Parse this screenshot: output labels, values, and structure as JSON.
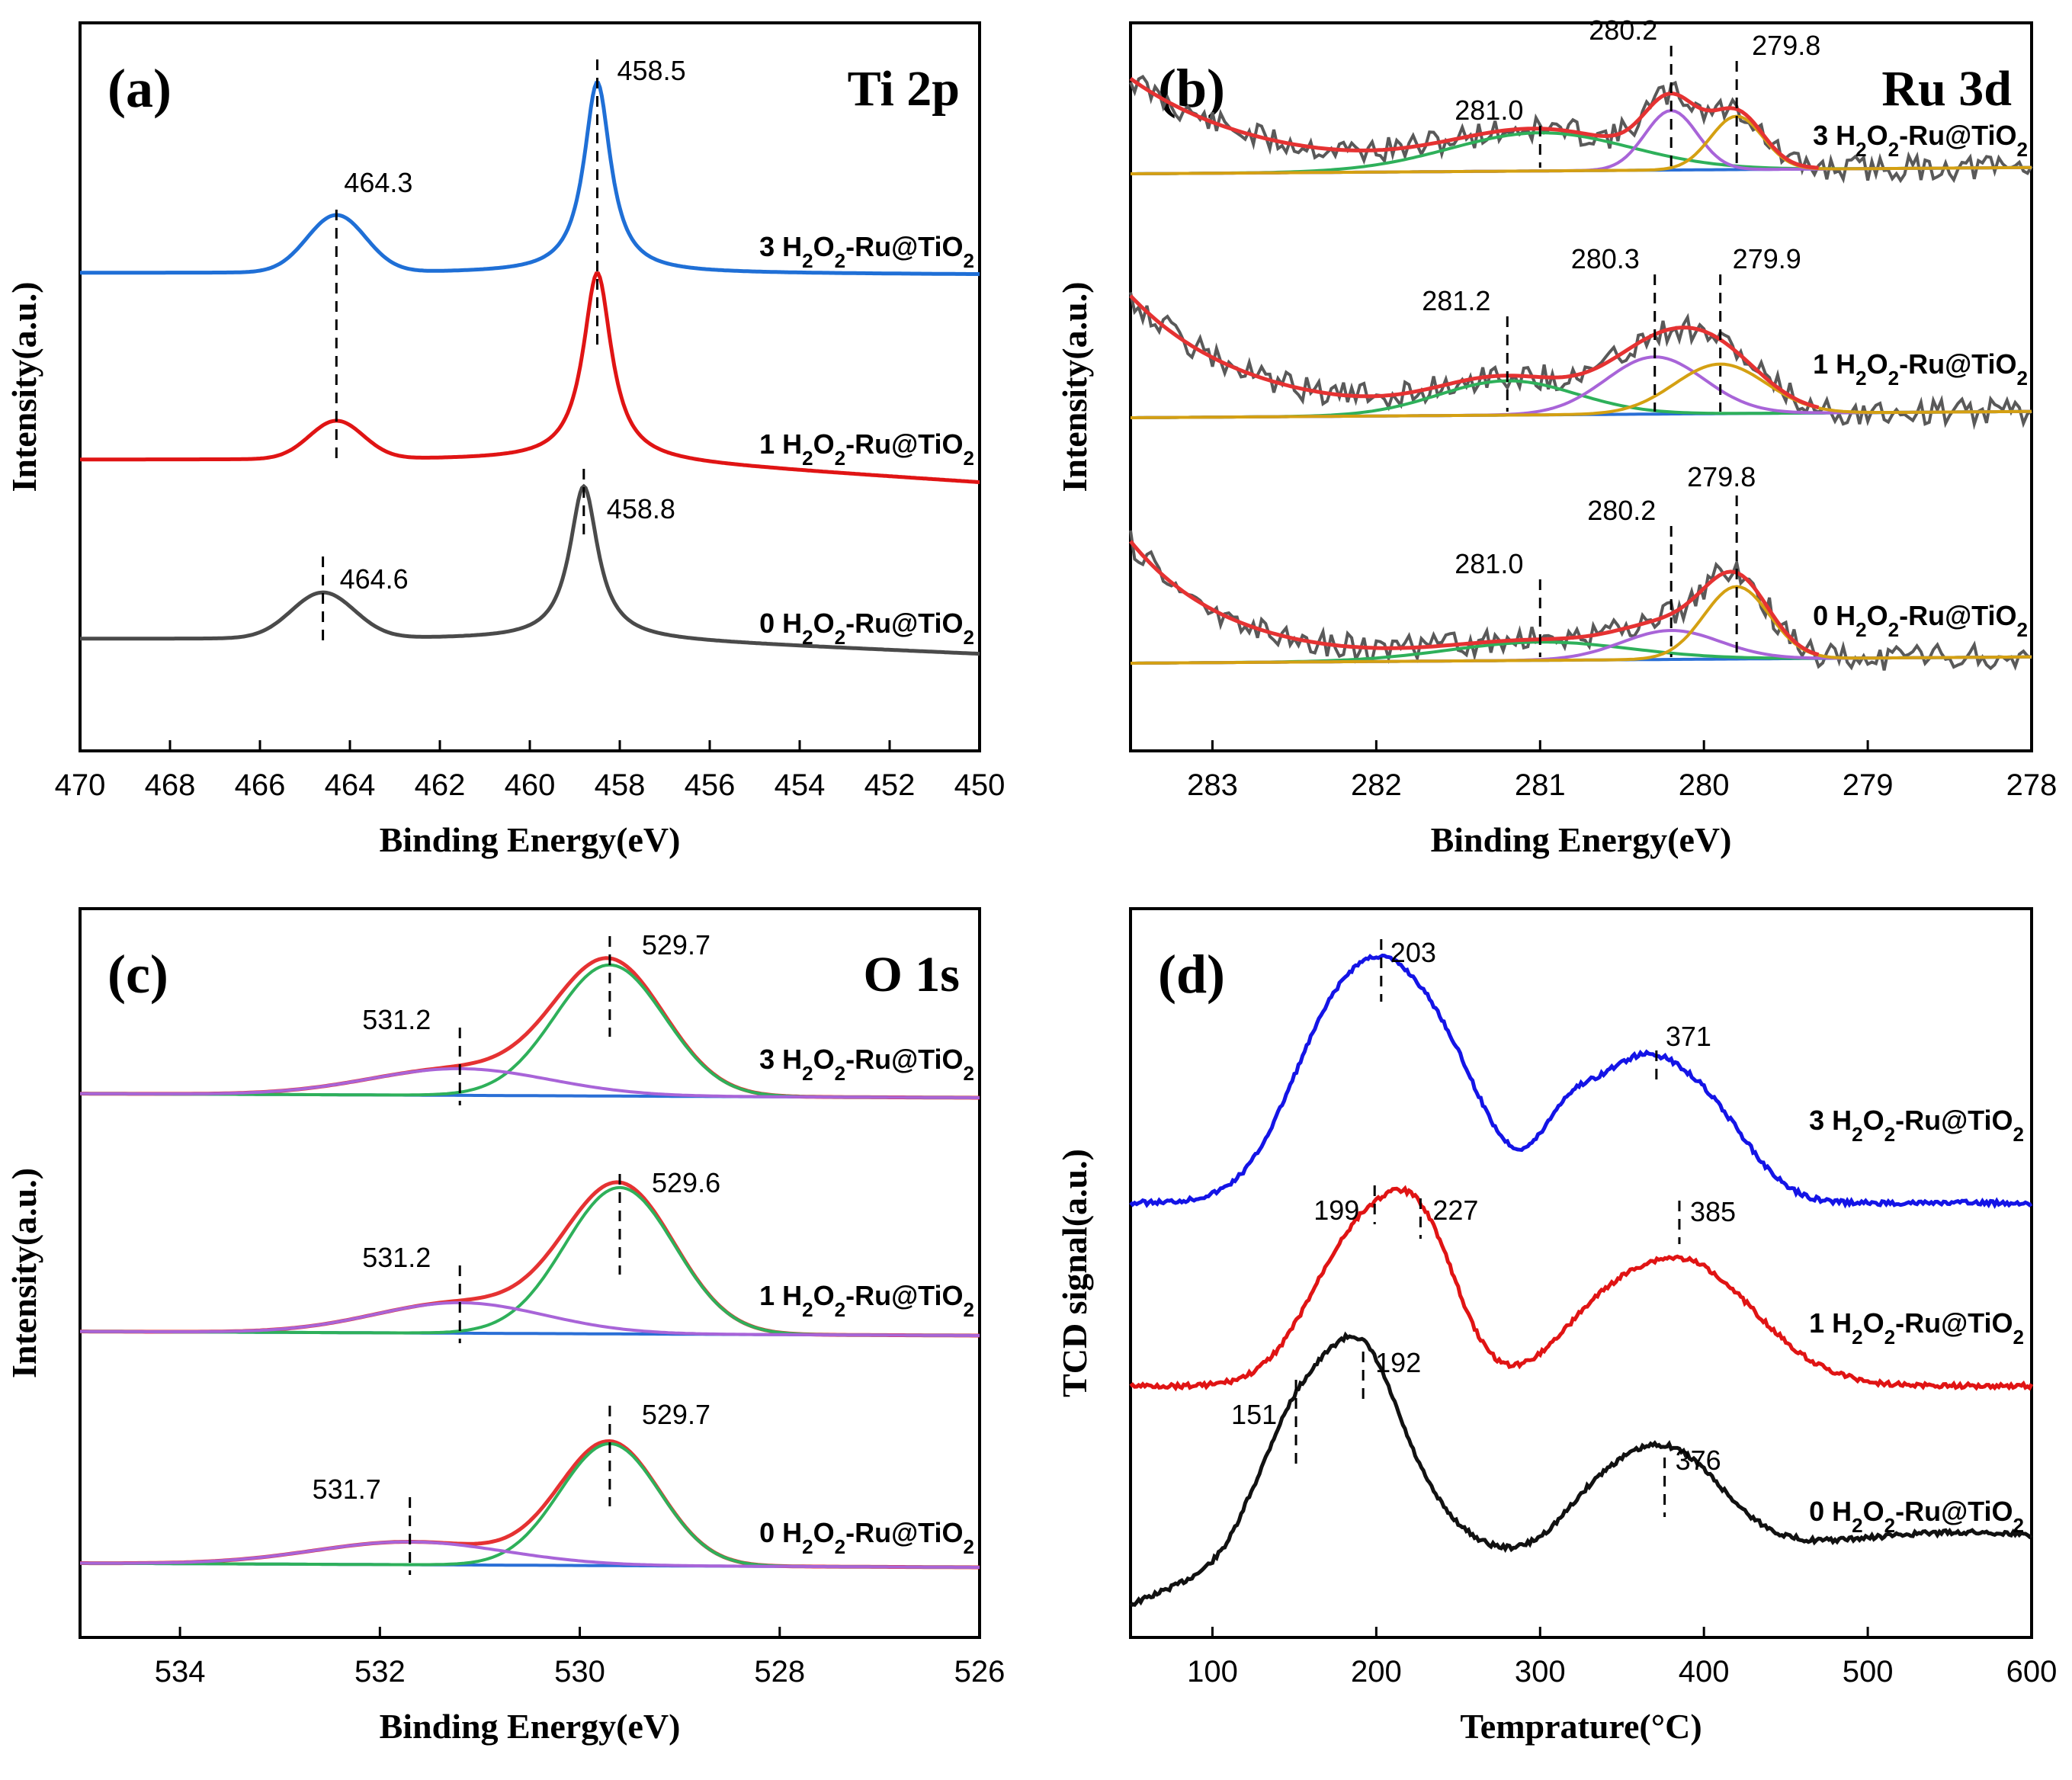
{
  "chart_data": [
    {
      "id": "a",
      "type": "line",
      "panel_label": "(a)",
      "element_label": "Ti 2p",
      "xlabel": "Binding Energy(eV)",
      "ylabel": "Intensity(a.u.)",
      "xlim": [
        470,
        450
      ],
      "x_ticks": [
        "470",
        "468",
        "466",
        "464",
        "462",
        "460",
        "458",
        "456",
        "454",
        "452",
        "450"
      ],
      "series": [
        {
          "name": "3 H2O2-Ru@TiO2",
          "color": "#1f6fd6",
          "peaks": [
            {
              "x": 464.3,
              "label": "464.3"
            },
            {
              "x": 458.5,
              "label": "458.5"
            }
          ]
        },
        {
          "name": "1 H2O2-Ru@TiO2",
          "color": "#e01414",
          "peaks": []
        },
        {
          "name": "0 H2O2-Ru@TiO2",
          "color": "#4a4a4a",
          "peaks": [
            {
              "x": 464.6,
              "label": "464.6"
            },
            {
              "x": 458.8,
              "label": "458.8"
            }
          ]
        }
      ]
    },
    {
      "id": "b",
      "type": "line",
      "panel_label": "(b)",
      "element_label": "Ru 3d",
      "xlabel": "Binding Energy(eV)",
      "ylabel": "Intensity(a.u.)",
      "xlim": [
        283.5,
        278
      ],
      "x_ticks": [
        "283",
        "282",
        "281",
        "280",
        "279",
        "278"
      ],
      "fit_colors": {
        "raw": "#595959",
        "envelope": "#e53232",
        "c281": "#2eb05a",
        "c280": "#a864d8",
        "c279": "#d4a012",
        "baseline": "#2a6fd6"
      },
      "series": [
        {
          "name": "3 H2O2-Ru@TiO2",
          "peaks": [
            {
              "x": 281.0,
              "label": "281.0"
            },
            {
              "x": 280.2,
              "label": "280.2"
            },
            {
              "x": 279.8,
              "label": "279.8"
            }
          ]
        },
        {
          "name": "1 H2O2-Ru@TiO2",
          "peaks": [
            {
              "x": 281.2,
              "label": "281.2"
            },
            {
              "x": 280.3,
              "label": "280.3"
            },
            {
              "x": 279.9,
              "label": "279.9"
            }
          ]
        },
        {
          "name": "0 H2O2-Ru@TiO2",
          "peaks": [
            {
              "x": 281.0,
              "label": "281.0"
            },
            {
              "x": 280.2,
              "label": "280.2"
            },
            {
              "x": 279.8,
              "label": "279.8"
            }
          ]
        }
      ]
    },
    {
      "id": "c",
      "type": "line",
      "panel_label": "(c)",
      "element_label": "O 1s",
      "xlabel": "Binding Energy(eV)",
      "ylabel": "Intensity(a.u.)",
      "xlim": [
        535,
        526
      ],
      "x_ticks": [
        "534",
        "532",
        "530",
        "528",
        "526"
      ],
      "fit_colors": {
        "envelope": "#e53232",
        "lattice": "#2eb05a",
        "surface": "#a864d8",
        "baseline": "#2a6fd6"
      },
      "series": [
        {
          "name": "3 H2O2-Ru@TiO2",
          "peaks": [
            {
              "x": 531.2,
              "label": "531.2"
            },
            {
              "x": 529.7,
              "label": "529.7"
            }
          ]
        },
        {
          "name": "1 H2O2-Ru@TiO2",
          "peaks": [
            {
              "x": 531.2,
              "label": "531.2"
            },
            {
              "x": 529.6,
              "label": "529.6"
            }
          ]
        },
        {
          "name": "0 H2O2-Ru@TiO2",
          "peaks": [
            {
              "x": 531.7,
              "label": "531.7"
            },
            {
              "x": 529.7,
              "label": "529.7"
            }
          ]
        }
      ]
    },
    {
      "id": "d",
      "type": "line",
      "panel_label": "(d)",
      "element_label": "",
      "xlabel": "Temprature(°C)",
      "ylabel": "TCD signal(a.u.)",
      "xlim": [
        50,
        600
      ],
      "x_ticks": [
        "100",
        "200",
        "300",
        "400",
        "500",
        "600"
      ],
      "series": [
        {
          "name": "3 H2O2-Ru@TiO2",
          "color": "#1414e6",
          "peaks": [
            {
              "x": 203,
              "label": "203"
            },
            {
              "x": 371,
              "label": "371"
            }
          ]
        },
        {
          "name": "1 H2O2-Ru@TiO2",
          "color": "#e01414",
          "peaks": [
            {
              "x": 199,
              "label": "199"
            },
            {
              "x": 227,
              "label": "227"
            },
            {
              "x": 385,
              "label": "385"
            }
          ]
        },
        {
          "name": "0 H2O2-Ru@TiO2",
          "color": "#111111",
          "peaks": [
            {
              "x": 151,
              "label": "151"
            },
            {
              "x": 192,
              "label": "192"
            },
            {
              "x": 376,
              "label": "376"
            }
          ]
        }
      ]
    }
  ]
}
